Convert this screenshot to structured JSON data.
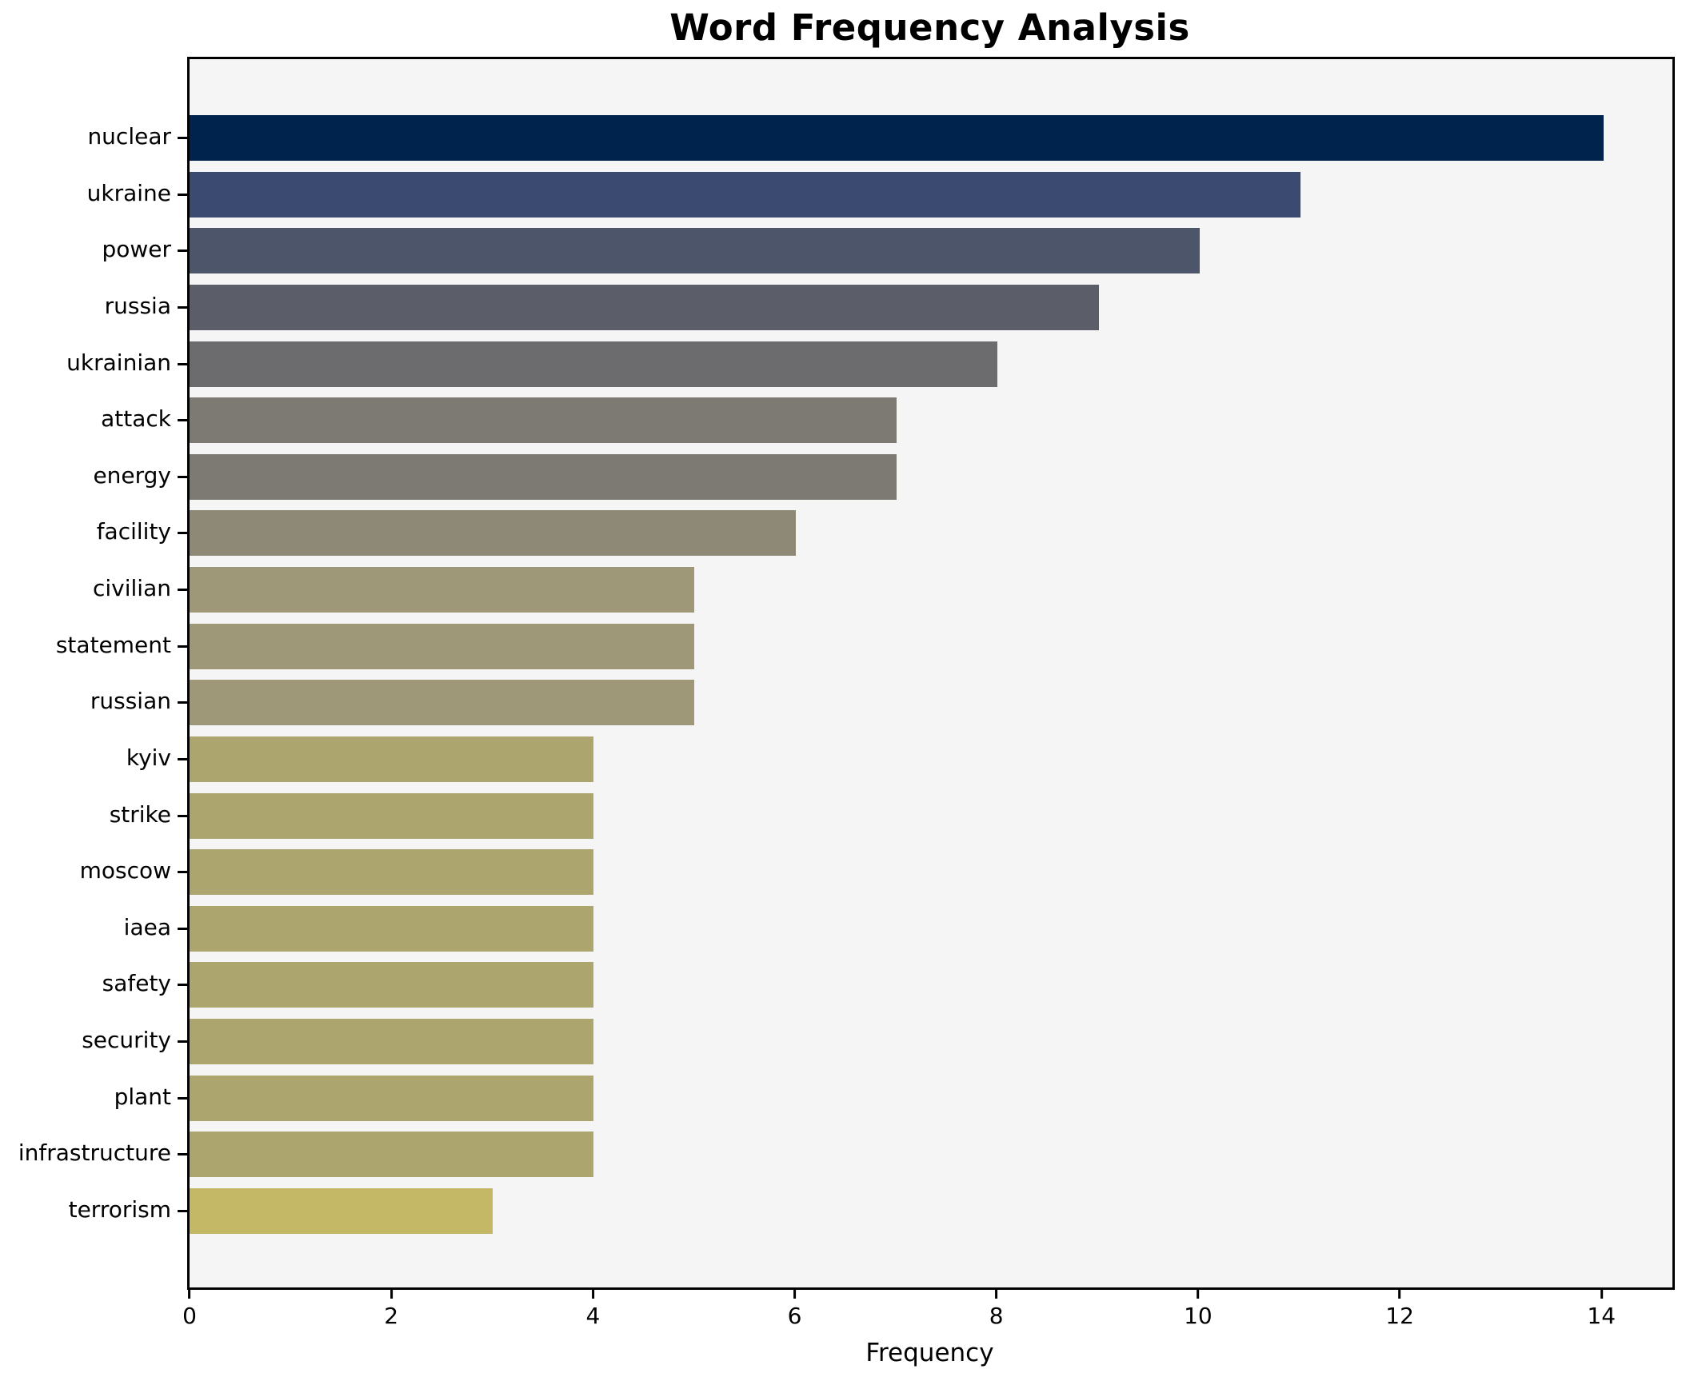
{
  "title": "Word Frequency Analysis",
  "chart_data": {
    "type": "bar",
    "orientation": "horizontal",
    "title": "Word Frequency Analysis",
    "xlabel": "Frequency",
    "ylabel": "",
    "xlim": [
      0,
      14.68
    ],
    "x_ticks": [
      0,
      2,
      4,
      6,
      8,
      10,
      12,
      14
    ],
    "grid": false,
    "legend": "none",
    "plot_background": "#f5f5f5",
    "figure_background": "#ffffff",
    "spine_color": "#000000",
    "colormap": "cividis (mapped to frequency, high=dark navy, low=khaki)",
    "categories": [
      "nuclear",
      "ukraine",
      "power",
      "russia",
      "ukrainian",
      "attack",
      "energy",
      "facility",
      "civilian",
      "statement",
      "russian",
      "kyiv",
      "strike",
      "moscow",
      "iaea",
      "safety",
      "security",
      "plant",
      "infrastructure",
      "terrorism"
    ],
    "values": [
      14,
      11,
      10,
      9,
      8,
      7,
      7,
      6,
      5,
      5,
      5,
      4,
      4,
      4,
      4,
      4,
      4,
      4,
      4,
      3
    ],
    "bar_colors": [
      "#00234e",
      "#3b4a70",
      "#4d556b",
      "#5b5e68",
      "#6c6b6e",
      "#7c7a72",
      "#7c7a72",
      "#8e8876",
      "#9e9878",
      "#9e9878",
      "#9e9878",
      "#aca56e",
      "#aca56e",
      "#aca56e",
      "#aca56e",
      "#aca56e",
      "#aca56e",
      "#aca56e",
      "#aca56e",
      "#c4b765"
    ]
  }
}
